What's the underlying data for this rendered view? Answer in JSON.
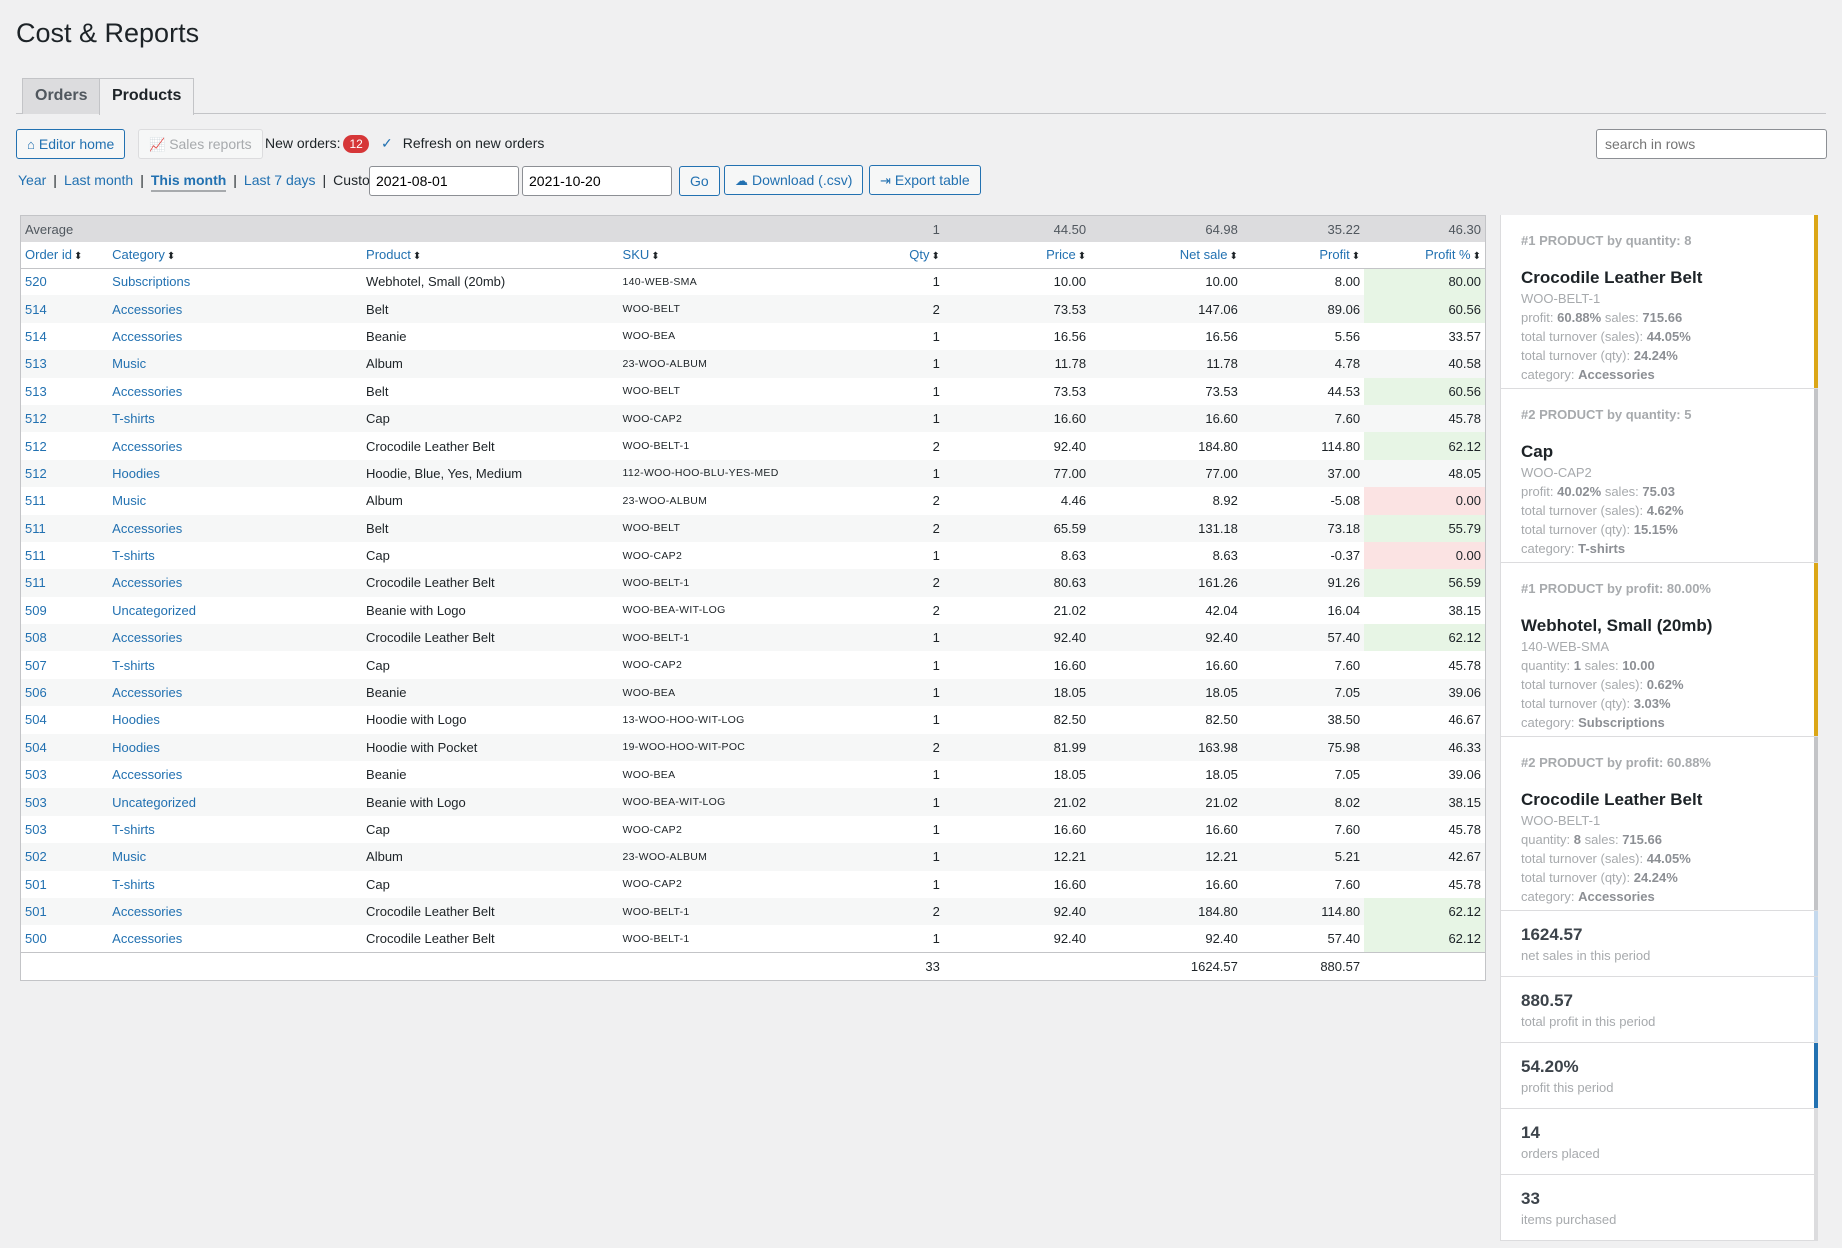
{
  "page_title": "Cost & Reports",
  "tabs": [
    {
      "label": "Orders"
    },
    {
      "label": "Products"
    }
  ],
  "toolbar": {
    "editor_home": "Editor home",
    "sales_reports": "Sales reports",
    "new_orders_label": "New orders:",
    "new_orders_count": "12",
    "refresh_label": "Refresh on new orders",
    "search_placeholder": "search in rows"
  },
  "periods": {
    "year": "Year",
    "last_month": "Last month",
    "this_month": "This month",
    "last_7_days": "Last 7 days",
    "custom_label": "Custom:",
    "date_from": "2021-08-01",
    "date_to": "2021-10-20",
    "go": "Go",
    "download": "Download (.csv)",
    "export": "Export table"
  },
  "table": {
    "average": {
      "label": "Average",
      "qty": "1",
      "price": "44.50",
      "net_sale": "64.98",
      "profit": "35.22",
      "profit_pct": "46.30"
    },
    "headers": {
      "order_id": "Order id",
      "category": "Category",
      "product": "Product",
      "sku": "SKU",
      "qty": "Qty",
      "price": "Price",
      "net_sale": "Net sale",
      "profit": "Profit",
      "profit_pct": "Profit %"
    },
    "rows": [
      {
        "order_id": "520",
        "category": "Subscriptions",
        "product": "Webhotel, Small (20mb)",
        "sku": "140-WEB-SMA",
        "qty": "1",
        "price": "10.00",
        "net_sale": "10.00",
        "profit": "8.00",
        "profit_pct": "80.00",
        "status": "good"
      },
      {
        "order_id": "514",
        "category": "Accessories",
        "product": "Belt",
        "sku": "WOO-BELT",
        "qty": "2",
        "price": "73.53",
        "net_sale": "147.06",
        "profit": "89.06",
        "profit_pct": "60.56",
        "status": "good"
      },
      {
        "order_id": "514",
        "category": "Accessories",
        "product": "Beanie",
        "sku": "WOO-BEA",
        "qty": "1",
        "price": "16.56",
        "net_sale": "16.56",
        "profit": "5.56",
        "profit_pct": "33.57",
        "status": ""
      },
      {
        "order_id": "513",
        "category": "Music",
        "product": "Album",
        "sku": "23-WOO-ALBUM",
        "qty": "1",
        "price": "11.78",
        "net_sale": "11.78",
        "profit": "4.78",
        "profit_pct": "40.58",
        "status": ""
      },
      {
        "order_id": "513",
        "category": "Accessories",
        "product": "Belt",
        "sku": "WOO-BELT",
        "qty": "1",
        "price": "73.53",
        "net_sale": "73.53",
        "profit": "44.53",
        "profit_pct": "60.56",
        "status": "good"
      },
      {
        "order_id": "512",
        "category": "T-shirts",
        "product": "Cap",
        "sku": "WOO-CAP2",
        "qty": "1",
        "price": "16.60",
        "net_sale": "16.60",
        "profit": "7.60",
        "profit_pct": "45.78",
        "status": ""
      },
      {
        "order_id": "512",
        "category": "Accessories",
        "product": "Crocodile Leather Belt",
        "sku": "WOO-BELT-1",
        "qty": "2",
        "price": "92.40",
        "net_sale": "184.80",
        "profit": "114.80",
        "profit_pct": "62.12",
        "status": "good"
      },
      {
        "order_id": "512",
        "category": "Hoodies",
        "product": "Hoodie, Blue, Yes, Medium",
        "sku": "112-WOO-HOO-BLU-YES-MED",
        "qty": "1",
        "price": "77.00",
        "net_sale": "77.00",
        "profit": "37.00",
        "profit_pct": "48.05",
        "status": ""
      },
      {
        "order_id": "511",
        "category": "Music",
        "product": "Album",
        "sku": "23-WOO-ALBUM",
        "qty": "2",
        "price": "4.46",
        "net_sale": "8.92",
        "profit": "-5.08",
        "profit_pct": "0.00",
        "status": "bad"
      },
      {
        "order_id": "511",
        "category": "Accessories",
        "product": "Belt",
        "sku": "WOO-BELT",
        "qty": "2",
        "price": "65.59",
        "net_sale": "131.18",
        "profit": "73.18",
        "profit_pct": "55.79",
        "status": "good"
      },
      {
        "order_id": "511",
        "category": "T-shirts",
        "product": "Cap",
        "sku": "WOO-CAP2",
        "qty": "1",
        "price": "8.63",
        "net_sale": "8.63",
        "profit": "-0.37",
        "profit_pct": "0.00",
        "status": "bad"
      },
      {
        "order_id": "511",
        "category": "Accessories",
        "product": "Crocodile Leather Belt",
        "sku": "WOO-BELT-1",
        "qty": "2",
        "price": "80.63",
        "net_sale": "161.26",
        "profit": "91.26",
        "profit_pct": "56.59",
        "status": "good"
      },
      {
        "order_id": "509",
        "category": "Uncategorized",
        "product": "Beanie with Logo",
        "sku": "WOO-BEA-WIT-LOG",
        "qty": "2",
        "price": "21.02",
        "net_sale": "42.04",
        "profit": "16.04",
        "profit_pct": "38.15",
        "status": ""
      },
      {
        "order_id": "508",
        "category": "Accessories",
        "product": "Crocodile Leather Belt",
        "sku": "WOO-BELT-1",
        "qty": "1",
        "price": "92.40",
        "net_sale": "92.40",
        "profit": "57.40",
        "profit_pct": "62.12",
        "status": "good"
      },
      {
        "order_id": "507",
        "category": "T-shirts",
        "product": "Cap",
        "sku": "WOO-CAP2",
        "qty": "1",
        "price": "16.60",
        "net_sale": "16.60",
        "profit": "7.60",
        "profit_pct": "45.78",
        "status": ""
      },
      {
        "order_id": "506",
        "category": "Accessories",
        "product": "Beanie",
        "sku": "WOO-BEA",
        "qty": "1",
        "price": "18.05",
        "net_sale": "18.05",
        "profit": "7.05",
        "profit_pct": "39.06",
        "status": ""
      },
      {
        "order_id": "504",
        "category": "Hoodies",
        "product": "Hoodie with Logo",
        "sku": "13-WOO-HOO-WIT-LOG",
        "qty": "1",
        "price": "82.50",
        "net_sale": "82.50",
        "profit": "38.50",
        "profit_pct": "46.67",
        "status": ""
      },
      {
        "order_id": "504",
        "category": "Hoodies",
        "product": "Hoodie with Pocket",
        "sku": "19-WOO-HOO-WIT-POC",
        "qty": "2",
        "price": "81.99",
        "net_sale": "163.98",
        "profit": "75.98",
        "profit_pct": "46.33",
        "status": ""
      },
      {
        "order_id": "503",
        "category": "Accessories",
        "product": "Beanie",
        "sku": "WOO-BEA",
        "qty": "1",
        "price": "18.05",
        "net_sale": "18.05",
        "profit": "7.05",
        "profit_pct": "39.06",
        "status": ""
      },
      {
        "order_id": "503",
        "category": "Uncategorized",
        "product": "Beanie with Logo",
        "sku": "WOO-BEA-WIT-LOG",
        "qty": "1",
        "price": "21.02",
        "net_sale": "21.02",
        "profit": "8.02",
        "profit_pct": "38.15",
        "status": ""
      },
      {
        "order_id": "503",
        "category": "T-shirts",
        "product": "Cap",
        "sku": "WOO-CAP2",
        "qty": "1",
        "price": "16.60",
        "net_sale": "16.60",
        "profit": "7.60",
        "profit_pct": "45.78",
        "status": ""
      },
      {
        "order_id": "502",
        "category": "Music",
        "product": "Album",
        "sku": "23-WOO-ALBUM",
        "qty": "1",
        "price": "12.21",
        "net_sale": "12.21",
        "profit": "5.21",
        "profit_pct": "42.67",
        "status": ""
      },
      {
        "order_id": "501",
        "category": "T-shirts",
        "product": "Cap",
        "sku": "WOO-CAP2",
        "qty": "1",
        "price": "16.60",
        "net_sale": "16.60",
        "profit": "7.60",
        "profit_pct": "45.78",
        "status": ""
      },
      {
        "order_id": "501",
        "category": "Accessories",
        "product": "Crocodile Leather Belt",
        "sku": "WOO-BELT-1",
        "qty": "2",
        "price": "92.40",
        "net_sale": "184.80",
        "profit": "114.80",
        "profit_pct": "62.12",
        "status": "good"
      },
      {
        "order_id": "500",
        "category": "Accessories",
        "product": "Crocodile Leather Belt",
        "sku": "WOO-BELT-1",
        "qty": "1",
        "price": "92.40",
        "net_sale": "92.40",
        "profit": "57.40",
        "profit_pct": "62.12",
        "status": "good"
      }
    ],
    "totals": {
      "qty": "33",
      "net_sale": "1624.57",
      "profit": "880.57"
    }
  },
  "sidebar": {
    "cards": [
      {
        "head": "#1 PRODUCT by quantity: 8",
        "name": "Crocodile Leather Belt",
        "sku": "WOO-BELT-1",
        "l1a": "profit: ",
        "l1b": "60.88%",
        "l1c": " sales: ",
        "l1d": "715.66",
        "l2a": "total turnover (sales): ",
        "l2b": "44.05%",
        "l3a": "total turnover (qty): ",
        "l3b": "24.24%",
        "l4a": "category: ",
        "l4b": "Accessories",
        "accent": "#dba617"
      },
      {
        "head": "#2 PRODUCT by quantity: 5",
        "name": "Cap",
        "sku": "WOO-CAP2",
        "l1a": "profit: ",
        "l1b": "40.02%",
        "l1c": " sales: ",
        "l1d": "75.03",
        "l2a": "total turnover (sales): ",
        "l2b": "4.62%",
        "l3a": "total turnover (qty): ",
        "l3b": "15.15%",
        "l4a": "category: ",
        "l4b": "T-shirts",
        "accent": "#c3c4c7"
      },
      {
        "head": "#1 PRODUCT by profit: 80.00%",
        "name": "Webhotel, Small (20mb)",
        "sku": "140-WEB-SMA",
        "l1a": "quantity: ",
        "l1b": "1",
        "l1c": " sales: ",
        "l1d": "10.00",
        "l2a": "total turnover (sales): ",
        "l2b": "0.62%",
        "l3a": "total turnover (qty): ",
        "l3b": "3.03%",
        "l4a": "category: ",
        "l4b": "Subscriptions",
        "accent": "#dba617"
      },
      {
        "head": "#2 PRODUCT by profit: 60.88%",
        "name": "Crocodile Leather Belt",
        "sku": "WOO-BELT-1",
        "l1a": "quantity: ",
        "l1b": "8",
        "l1c": " sales: ",
        "l1d": "715.66",
        "l2a": "total turnover (sales): ",
        "l2b": "44.05%",
        "l3a": "total turnover (qty): ",
        "l3b": "24.24%",
        "l4a": "category: ",
        "l4b": "Accessories",
        "accent": "#c3c4c7"
      }
    ],
    "stats": [
      {
        "value": "1624.57",
        "label": "net sales in this period",
        "accent": "#c5d9ed"
      },
      {
        "value": "880.57",
        "label": "total profit in this period",
        "accent": "#c5d9ed"
      },
      {
        "value": "54.20%",
        "label": "profit this period",
        "accent": "#2271b1"
      },
      {
        "value": "14",
        "label": "orders placed",
        "accent": "#dcdcde"
      },
      {
        "value": "33",
        "label": "items purchased",
        "accent": "#dcdcde"
      }
    ]
  }
}
